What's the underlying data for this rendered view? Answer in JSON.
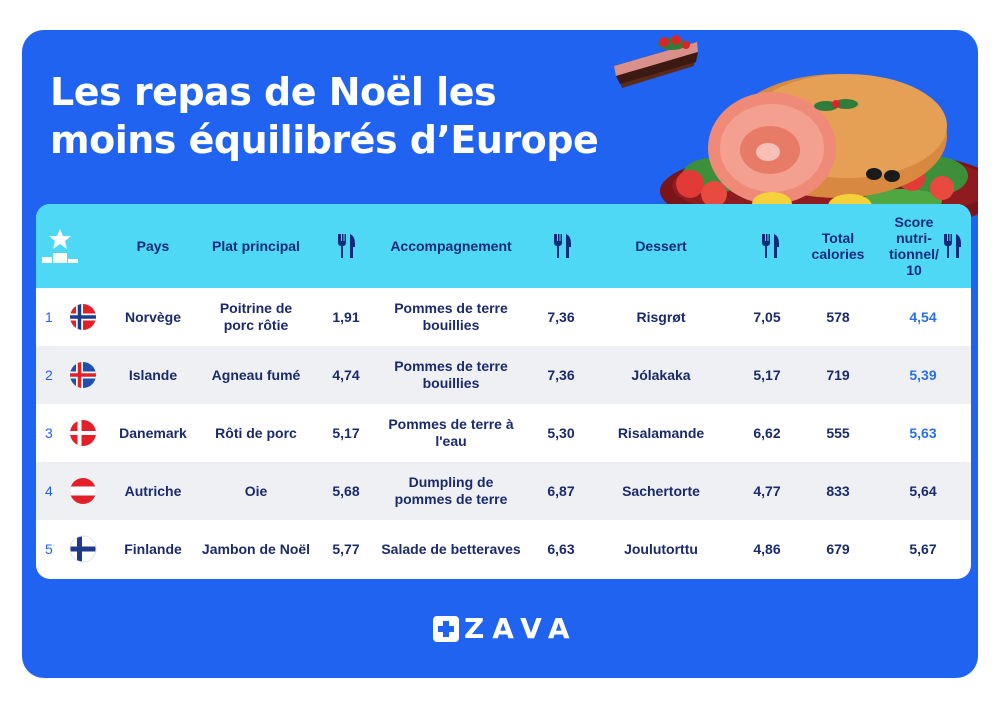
{
  "title": {
    "line1": "Les repas de Noël les",
    "line2": "moins équilibrés d’Europe"
  },
  "headers": {
    "rank_icon": "podium-star-icon",
    "pays": "Pays",
    "plat": "Plat principal",
    "plat_score_icon": "fork-knife-icon",
    "accompagnement": "Accompagnement",
    "accomp_score_icon": "fork-knife-icon",
    "dessert": "Dessert",
    "dessert_score_icon": "fork-knife-icon",
    "calories": "Total calories",
    "score": "Score nutri- tionnel/ 10",
    "score_icon": "fork-knife-icon"
  },
  "rows": [
    {
      "rank": "1",
      "flag": "norway-flag-icon",
      "pays": "Norvège",
      "plat": "Poitrine de porc rôtie",
      "plat_score": "1,91",
      "accompagnement": "Pommes de terre bouillies",
      "accomp_score": "7,36",
      "dessert": "Risgrøt",
      "dessert_score": "7,05",
      "calories": "578",
      "score": "4,54"
    },
    {
      "rank": "2",
      "flag": "iceland-flag-icon",
      "pays": "Islande",
      "plat": "Agneau fumé",
      "plat_score": "4,74",
      "accompagnement": "Pommes de terre bouillies",
      "accomp_score": "7,36",
      "dessert": "Jólakaka",
      "dessert_score": "5,17",
      "calories": "719",
      "score": "5,39"
    },
    {
      "rank": "3",
      "flag": "denmark-flag-icon",
      "pays": "Danemark",
      "plat": "Rôti de porc",
      "plat_score": "5,17",
      "accompagnement": "Pommes de terre à l'eau",
      "accomp_score": "5,30",
      "dessert": "Risalamande",
      "dessert_score": "6,62",
      "calories": "555",
      "score": "5,63"
    },
    {
      "rank": "4",
      "flag": "austria-flag-icon",
      "pays": "Autriche",
      "plat": "Oie",
      "plat_score": "5,68",
      "accompagnement": "Dumpling de pommes  de terre",
      "accomp_score": "6,87",
      "dessert": "Sachertorte",
      "dessert_score": "4,77",
      "calories": "833",
      "score": "5,64"
    },
    {
      "rank": "5",
      "flag": "finland-flag-icon",
      "pays": "Finlande",
      "plat": "Jambon de Noël",
      "plat_score": "5,77",
      "accompagnement": "Salade de betteraves",
      "accomp_score": "6,63",
      "dessert": "Joulutorttu",
      "dessert_score": "4,86",
      "calories": "679",
      "score": "5,67"
    }
  ],
  "brand": {
    "logo_icon": "zava-cross-icon",
    "name": "ZAVA"
  },
  "colors": {
    "panel": "#1f63f0",
    "header": "#4fd8f5",
    "header_text": "#0e2b7a",
    "score_highlight": "#2a6fe8"
  }
}
